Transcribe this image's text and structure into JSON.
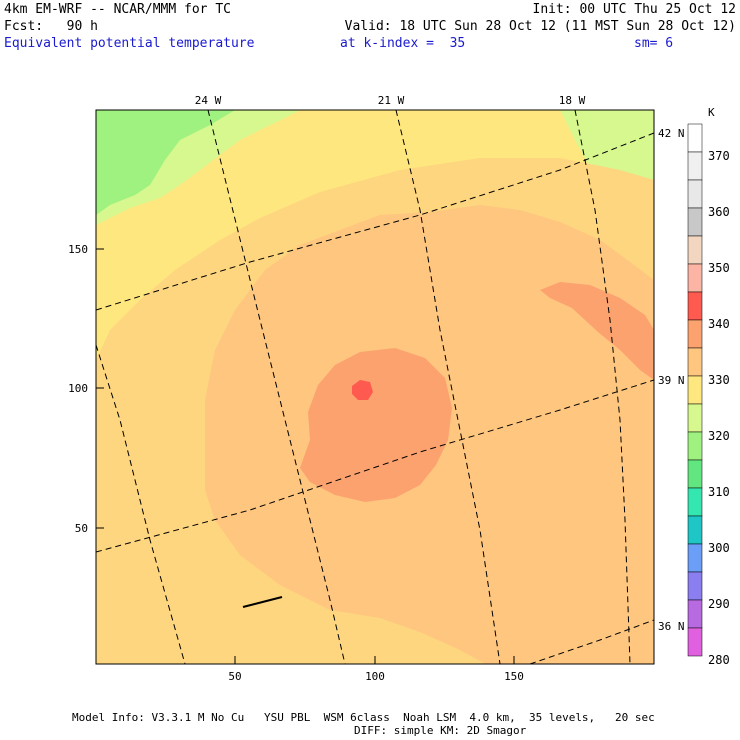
{
  "header": {
    "model": "4km EM-WRF -- NCAR/MMM for TC",
    "init": "Init: 00 UTC Thu 25 Oct 12",
    "fcst": "Fcst:   90 h",
    "valid": "Valid: 18 UTC Sun 28 Oct 12 (11 MST Sun 28 Oct 12)",
    "field": "Equivalent potential temperature",
    "level": "at k-index =  35",
    "smooth": "sm= 6"
  },
  "footer": {
    "line1": "Model Info: V3.3.1 M No Cu   YSU PBL  WSM 6class  Noah LSM  4.0 km,  35 levels,   20 sec",
    "line2": "DIFF: simple KM: 2D Smagor"
  },
  "colors": {
    "band_320": "#ffe77f",
    "band_325": "#fed67f",
    "band_330": "#fec67f",
    "band_335": "#fca26f",
    "band_340": "#ff5a4f",
    "band_315": "#d7f78f",
    "band_310": "#9ff27f",
    "black": "#000000"
  },
  "chart_data": {
    "type": "map",
    "x_ticks": [
      50,
      100,
      150
    ],
    "y_ticks": [
      50,
      100,
      150
    ],
    "lon_labels": [
      "24 W",
      "21 W",
      "18 W"
    ],
    "lat_labels": [
      "42 N",
      "39 N",
      "36 N"
    ],
    "units": "K",
    "colorbar": {
      "labels": [
        "370",
        "360",
        "350",
        "340",
        "330",
        "320",
        "310",
        "300",
        "290",
        "280"
      ],
      "colors": [
        "#ffffff",
        "#f0f0f0",
        "#e8e8e8",
        "#c8c8c8",
        "#f3d6bf",
        "#fcb4a4",
        "#ff5a4f",
        "#fca26f",
        "#fec67f",
        "#ffe77f",
        "#d7f78f",
        "#9ff27f",
        "#62e67f",
        "#34e6b0",
        "#1fc6c6",
        "#6a9ef7",
        "#8a7ef0",
        "#b86ae0",
        "#e060e0"
      ]
    }
  }
}
